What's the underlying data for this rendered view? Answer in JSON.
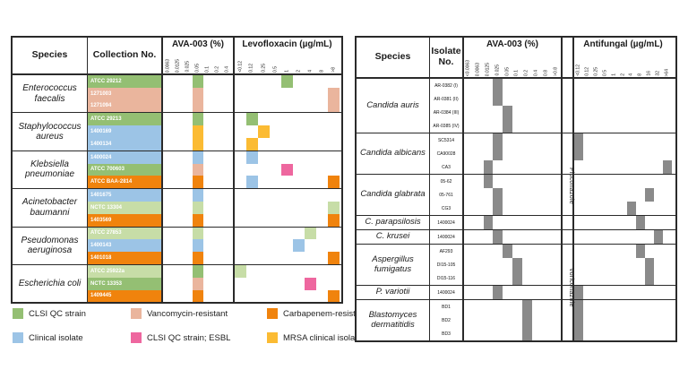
{
  "colors": {
    "green": "#94BF73",
    "lightgreen": "#C7DDA7",
    "blue": "#9CC4E6",
    "salmon": "#EAB59D",
    "pink": "#EE679F",
    "orange": "#F0830D",
    "yellow": "#FBBB33",
    "gray": "#8A8A8A"
  },
  "left_table": {
    "headers": {
      "species": "Species",
      "collection": "Collection No.",
      "ava": "AVA-003 (%)",
      "levo": "Levofloxacin (µg/mL)"
    },
    "ava_ticks": [
      "0.0063",
      "0.0125",
      "0.025",
      "0.05",
      "0.1",
      "0.2",
      "0.4"
    ],
    "levo_ticks": [
      "<0.12",
      "0.12",
      "0.25",
      "0.5",
      "1",
      "2",
      "4",
      "8",
      ">8"
    ],
    "groups": [
      {
        "species": "Enterococcus faecalis",
        "rows": [
          {
            "id": "ATCC 29212",
            "cat": "green",
            "ava": [
              [
                "0.05",
                "green"
              ]
            ],
            "mic": [
              [
                "1",
                "green"
              ]
            ]
          },
          {
            "id": "1271003",
            "cat": "salmon",
            "ava": [
              [
                "0.05",
                "salmon"
              ]
            ],
            "mic": [
              [
                ">8",
                "salmon"
              ]
            ]
          },
          {
            "id": "1271094",
            "cat": "salmon",
            "ava": [
              [
                "0.05",
                "salmon"
              ]
            ],
            "mic": [
              [
                ">8",
                "salmon"
              ]
            ]
          }
        ]
      },
      {
        "species": "Staphylococcus aureus",
        "rows": [
          {
            "id": "ATCC 29213",
            "cat": "green",
            "ava": [
              [
                "0.05",
                "green"
              ]
            ],
            "mic": [
              [
                "0.12",
                "green"
              ]
            ]
          },
          {
            "id": "1400169",
            "cat": "blue",
            "ava": [
              [
                "0.05",
                "yellow"
              ]
            ],
            "mic": [
              [
                "0.25",
                "yellow"
              ]
            ]
          },
          {
            "id": "1400134",
            "cat": "blue",
            "ava": [
              [
                "0.05",
                "yellow"
              ]
            ],
            "mic": [
              [
                "0.12",
                "yellow"
              ]
            ]
          }
        ]
      },
      {
        "species": "Klebsiella pneumoniae",
        "rows": [
          {
            "id": "1400024",
            "cat": "blue",
            "ava": [
              [
                "0.05",
                "blue"
              ]
            ],
            "mic": [
              [
                "0.12",
                "blue"
              ]
            ]
          },
          {
            "id": "ATCC 700603",
            "cat": "green",
            "ava": [
              [
                "0.05",
                "salmon"
              ]
            ],
            "mic": [
              [
                "1",
                "pink"
              ]
            ]
          },
          {
            "id": "ATCC BAA-2814",
            "cat": "orange",
            "ava": [
              [
                "0.05",
                "orange"
              ]
            ],
            "mic": [
              [
                "0.12",
                "blue"
              ],
              [
                ">8",
                "orange"
              ]
            ]
          }
        ]
      },
      {
        "species": "Acinetobacter baumanni",
        "rows": [
          {
            "id": "1401675",
            "cat": "blue",
            "ava": [
              [
                "0.05",
                "blue"
              ]
            ],
            "mic": []
          },
          {
            "id": "NCTC 13304",
            "cat": "lightgreen",
            "ava": [
              [
                "0.05",
                "lightgreen"
              ]
            ],
            "mic": [
              [
                ">8",
                "lightgreen"
              ]
            ]
          },
          {
            "id": "1403569",
            "cat": "orange",
            "ava": [
              [
                "0.05",
                "orange"
              ]
            ],
            "mic": [
              [
                ">8",
                "orange"
              ]
            ]
          }
        ]
      },
      {
        "species": "Pseudomonas aeruginosa",
        "rows": [
          {
            "id": "ATCC 27853",
            "cat": "lightgreen",
            "ava": [
              [
                "0.05",
                "lightgreen"
              ]
            ],
            "mic": [
              [
                "4",
                "lightgreen"
              ]
            ]
          },
          {
            "id": "1400143",
            "cat": "blue",
            "ava": [
              [
                "0.05",
                "blue"
              ]
            ],
            "mic": [
              [
                "2",
                "blue"
              ]
            ]
          },
          {
            "id": "1401018",
            "cat": "orange",
            "ava": [
              [
                "0.05",
                "orange"
              ]
            ],
            "mic": [
              [
                ">8",
                "orange"
              ]
            ]
          }
        ]
      },
      {
        "species": "Escherichia coli",
        "rows": [
          {
            "id": "ATCC 25922a",
            "cat": "lightgreen",
            "ava": [
              [
                "0.05",
                "green"
              ]
            ],
            "mic": [
              [
                "<0.12",
                "lightgreen"
              ]
            ]
          },
          {
            "id": "NCTC 13353",
            "cat": "green",
            "ava": [
              [
                "0.05",
                "salmon"
              ]
            ],
            "mic": [
              [
                "4",
                "pink"
              ]
            ]
          },
          {
            "id": "1409445",
            "cat": "orange",
            "ava": [
              [
                "0.05",
                "orange"
              ]
            ],
            "mic": [
              [
                ">8",
                "orange"
              ]
            ]
          }
        ]
      }
    ]
  },
  "legend": {
    "items": [
      {
        "label": "CLSI QC strain",
        "color": "green"
      },
      {
        "label": "Clinical isolate",
        "color": "blue"
      },
      {
        "label": "Vancomycin-resistant",
        "color": "salmon"
      },
      {
        "label": "CLSI QC strain; ESBL",
        "color": "pink"
      },
      {
        "label": "Carbapenem-resistant",
        "color": "orange"
      },
      {
        "label": "MRSA clinical isolate",
        "color": "yellow"
      }
    ]
  },
  "right_table": {
    "headers": {
      "species": "Species",
      "isolate": "Isolate No.",
      "ava": "AVA-003 (%)",
      "drug": "Antifungal (µg/mL)"
    },
    "ava_ticks": [
      "<0.0063",
      "0.0063",
      "0.0125",
      "0.025",
      "0.05",
      "0.1",
      "0.2",
      "0.4",
      "0.8",
      ">0.8"
    ],
    "drug_ticks": [
      "<0.12",
      "0.12",
      "0.25",
      "0.5",
      "1",
      "2",
      "4",
      "8",
      "16",
      "32",
      ">64"
    ],
    "drug_spans": [
      {
        "label": "Fluconazole",
        "start": 4,
        "end": 11
      },
      {
        "label": "Voriconazole",
        "start": 12,
        "end": 18
      }
    ],
    "groups": [
      {
        "species": "Candida auris",
        "rows": [
          {
            "id": "AR-0382 (I)",
            "ava": [
              [
                "0.025",
                "gray"
              ]
            ],
            "mic": []
          },
          {
            "id": "AR-0381 (II)",
            "ava": [
              [
                "0.025",
                "gray"
              ]
            ],
            "mic": []
          },
          {
            "id": "AR-0384 (III)",
            "ava": [
              [
                "0.05",
                "gray"
              ]
            ],
            "mic": []
          },
          {
            "id": "AR-0385 (IV)",
            "ava": [
              [
                "0.05",
                "gray"
              ]
            ],
            "mic": []
          }
        ]
      },
      {
        "species": "Candida albicans",
        "rows": [
          {
            "id": "SC5314",
            "ava": [
              [
                "0.025",
                "gray"
              ]
            ],
            "mic": [
              [
                "<0.12",
                "gray"
              ]
            ]
          },
          {
            "id": "CA90028",
            "ava": [
              [
                "0.025",
                "gray"
              ]
            ],
            "mic": [
              [
                "<0.12",
                "gray"
              ]
            ]
          },
          {
            "id": "CA3",
            "ava": [
              [
                "0.0125",
                "gray"
              ]
            ],
            "mic": [
              [
                ">64",
                "gray"
              ]
            ]
          }
        ]
      },
      {
        "species": "Candida glabrata",
        "rows": [
          {
            "id": "05-62",
            "ava": [
              [
                "0.0125",
                "gray"
              ]
            ],
            "mic": []
          },
          {
            "id": "05-761",
            "ava": [
              [
                "0.025",
                "gray"
              ]
            ],
            "mic": [
              [
                "16",
                "gray"
              ]
            ]
          },
          {
            "id": "CG3",
            "ava": [
              [
                "0.025",
                "gray"
              ]
            ],
            "mic": [
              [
                "4",
                "gray"
              ]
            ]
          }
        ]
      },
      {
        "species": "C. parapsilosis",
        "rows": [
          {
            "id": "1400024",
            "ava": [
              [
                "0.0125",
                "gray"
              ]
            ],
            "mic": [
              [
                "8",
                "gray"
              ]
            ]
          }
        ]
      },
      {
        "species": "C. krusei",
        "rows": [
          {
            "id": "1400024",
            "ava": [
              [
                "0.025",
                "gray"
              ]
            ],
            "mic": [
              [
                "32",
                "gray"
              ]
            ]
          }
        ]
      },
      {
        "species": "Aspergillus fumigatus",
        "rows": [
          {
            "id": "AF293",
            "ava": [
              [
                "0.05",
                "gray"
              ]
            ],
            "mic": [
              [
                "8",
                "gray"
              ]
            ]
          },
          {
            "id": "DI15-105",
            "ava": [
              [
                "0.1",
                "gray"
              ]
            ],
            "mic": [
              [
                "16",
                "gray"
              ]
            ]
          },
          {
            "id": "DI15-116",
            "ava": [
              [
                "0.1",
                "gray"
              ]
            ],
            "mic": [
              [
                "16",
                "gray"
              ]
            ]
          }
        ]
      },
      {
        "species": "P. variotii",
        "rows": [
          {
            "id": "1400024",
            "ava": [
              [
                "0.025",
                "gray"
              ]
            ],
            "mic": [
              [
                "<0.12",
                "gray"
              ]
            ]
          }
        ]
      },
      {
        "species": "Blastomyces dermatitidis",
        "rows": [
          {
            "id": "BD1",
            "ava": [
              [
                "0.2",
                "gray"
              ]
            ],
            "mic": [
              [
                "<0.12",
                "gray"
              ]
            ]
          },
          {
            "id": "BD2",
            "ava": [
              [
                "0.2",
                "gray"
              ]
            ],
            "mic": [
              [
                "<0.12",
                "gray"
              ]
            ]
          },
          {
            "id": "BD3",
            "ava": [
              [
                "0.2",
                "gray"
              ]
            ],
            "mic": [
              [
                "<0.12",
                "gray"
              ]
            ]
          }
        ]
      }
    ]
  }
}
